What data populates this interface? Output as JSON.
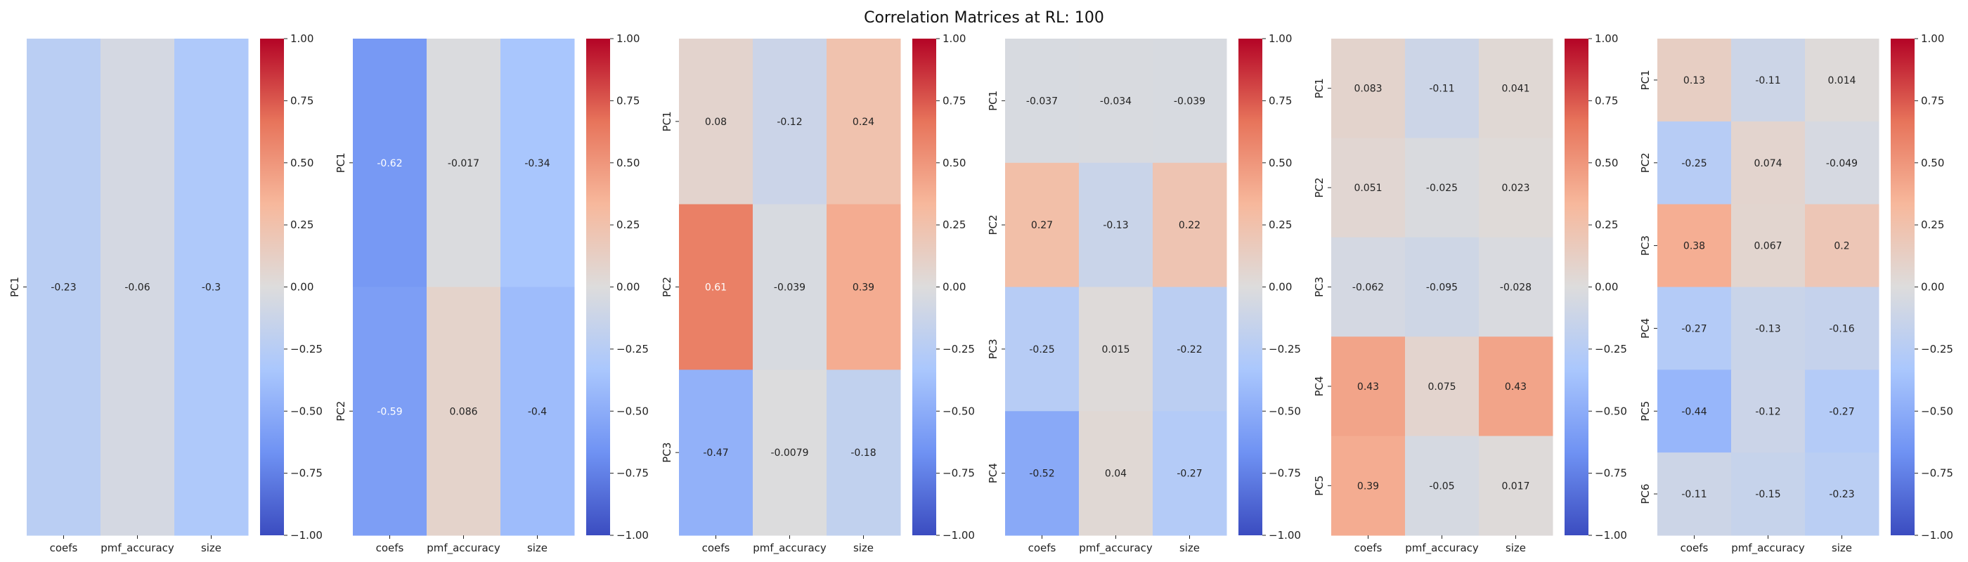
{
  "title": "Correlation Matrices at RL: 100",
  "colormap": {
    "name": "coolwarm",
    "vmin": -1.0,
    "vmax": 1.0,
    "stops": [
      "#3b4cc0",
      "#6f92f3",
      "#aac7fd",
      "#dddcdc",
      "#f7b89c",
      "#e7745b",
      "#b40426"
    ]
  },
  "colorbar_ticks": [
    "1.00",
    "0.75",
    "0.50",
    "0.25",
    "0.00",
    "−0.25",
    "−0.50",
    "−0.75",
    "−1.00"
  ],
  "chart_data": [
    {
      "type": "heatmap",
      "xlabel": "",
      "ylabel": "",
      "x_categories": [
        "coefs",
        "pmf_accuracy",
        "size"
      ],
      "y_categories": [
        "PC1"
      ],
      "values": [
        [
          -0.23,
          -0.06,
          -0.3
        ]
      ],
      "labels": [
        [
          "-0.23",
          "-0.06",
          "-0.3"
        ]
      ],
      "vlim": [
        -1,
        1
      ]
    },
    {
      "type": "heatmap",
      "xlabel": "",
      "ylabel": "",
      "x_categories": [
        "coefs",
        "pmf_accuracy",
        "size"
      ],
      "y_categories": [
        "PC1",
        "PC2"
      ],
      "values": [
        [
          -0.62,
          -0.017,
          -0.34
        ],
        [
          -0.59,
          0.086,
          -0.4
        ]
      ],
      "labels": [
        [
          "-0.62",
          "-0.017",
          "-0.34"
        ],
        [
          "-0.59",
          "0.086",
          "-0.4"
        ]
      ],
      "vlim": [
        -1,
        1
      ]
    },
    {
      "type": "heatmap",
      "xlabel": "",
      "ylabel": "",
      "x_categories": [
        "coefs",
        "pmf_accuracy",
        "size"
      ],
      "y_categories": [
        "PC1",
        "PC2",
        "PC3"
      ],
      "values": [
        [
          0.08,
          -0.12,
          0.24
        ],
        [
          0.61,
          -0.039,
          0.39
        ],
        [
          -0.47,
          -0.0079,
          -0.18
        ]
      ],
      "labels": [
        [
          "0.08",
          "-0.12",
          "0.24"
        ],
        [
          "0.61",
          "-0.039",
          "0.39"
        ],
        [
          "-0.47",
          "-0.0079",
          "-0.18"
        ]
      ],
      "vlim": [
        -1,
        1
      ]
    },
    {
      "type": "heatmap",
      "xlabel": "",
      "ylabel": "",
      "x_categories": [
        "coefs",
        "pmf_accuracy",
        "size"
      ],
      "y_categories": [
        "PC1",
        "PC2",
        "PC3",
        "PC4"
      ],
      "values": [
        [
          -0.037,
          -0.034,
          -0.039
        ],
        [
          0.27,
          -0.13,
          0.22
        ],
        [
          -0.25,
          0.015,
          -0.22
        ],
        [
          -0.52,
          0.04,
          -0.27
        ]
      ],
      "labels": [
        [
          "-0.037",
          "-0.034",
          "-0.039"
        ],
        [
          "0.27",
          "-0.13",
          "0.22"
        ],
        [
          "-0.25",
          "0.015",
          "-0.22"
        ],
        [
          "-0.52",
          "0.04",
          "-0.27"
        ]
      ],
      "vlim": [
        -1,
        1
      ]
    },
    {
      "type": "heatmap",
      "xlabel": "",
      "ylabel": "",
      "x_categories": [
        "coefs",
        "pmf_accuracy",
        "size"
      ],
      "y_categories": [
        "PC1",
        "PC2",
        "PC3",
        "PC4",
        "PC5"
      ],
      "values": [
        [
          0.083,
          -0.11,
          0.041
        ],
        [
          0.051,
          -0.025,
          0.023
        ],
        [
          -0.062,
          -0.095,
          -0.028
        ],
        [
          0.43,
          0.075,
          0.43
        ],
        [
          0.39,
          -0.05,
          0.017
        ]
      ],
      "labels": [
        [
          "0.083",
          "-0.11",
          "0.041"
        ],
        [
          "0.051",
          "-0.025",
          "0.023"
        ],
        [
          "-0.062",
          "-0.095",
          "-0.028"
        ],
        [
          "0.43",
          "0.075",
          "0.43"
        ],
        [
          "0.39",
          "-0.05",
          "0.017"
        ]
      ],
      "vlim": [
        -1,
        1
      ]
    },
    {
      "type": "heatmap",
      "xlabel": "",
      "ylabel": "",
      "x_categories": [
        "coefs",
        "pmf_accuracy",
        "size"
      ],
      "y_categories": [
        "PC1",
        "PC2",
        "PC3",
        "PC4",
        "PC5",
        "PC6"
      ],
      "values": [
        [
          0.13,
          -0.11,
          0.014
        ],
        [
          -0.25,
          0.074,
          -0.049
        ],
        [
          0.38,
          0.067,
          0.2
        ],
        [
          -0.27,
          -0.13,
          -0.16
        ],
        [
          -0.44,
          -0.12,
          -0.27
        ],
        [
          -0.11,
          -0.15,
          -0.23
        ]
      ],
      "labels": [
        [
          "0.13",
          "-0.11",
          "0.014"
        ],
        [
          "-0.25",
          "0.074",
          "-0.049"
        ],
        [
          "0.38",
          "0.067",
          "0.2"
        ],
        [
          "-0.27",
          "-0.13",
          "-0.16"
        ],
        [
          "-0.44",
          "-0.12",
          "-0.27"
        ],
        [
          "-0.11",
          "-0.15",
          "-0.23"
        ]
      ],
      "vlim": [
        -1,
        1
      ]
    }
  ]
}
